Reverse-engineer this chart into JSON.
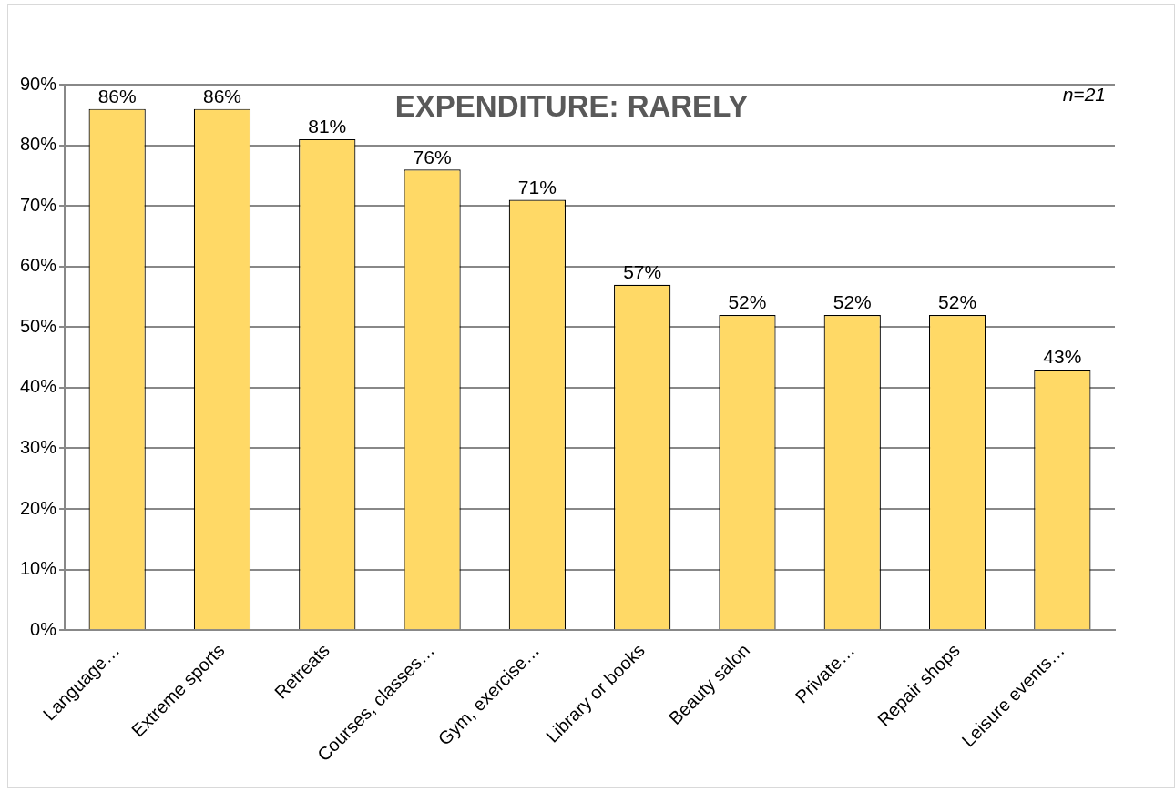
{
  "chart_data": {
    "type": "bar",
    "title": "EXPENDITURE: RARELY",
    "categories": [
      "Language…",
      "Extreme sports",
      "Retreats",
      "Courses, classes…",
      "Gym, exercise…",
      "Library or books",
      "Beauty salon",
      "Private…",
      "Repair shops",
      "Leisure events…"
    ],
    "values": [
      86,
      86,
      81,
      76,
      71,
      57,
      52,
      52,
      52,
      43
    ],
    "value_labels": [
      "86%",
      "86%",
      "81%",
      "76%",
      "71%",
      "57%",
      "52%",
      "52%",
      "52%",
      "43%"
    ],
    "color": "#ffd966",
    "ylim": [
      0,
      90
    ],
    "yticks": [
      {
        "value": 0,
        "label": "0%"
      },
      {
        "value": 10,
        "label": "10%"
      },
      {
        "value": 20,
        "label": "20%"
      },
      {
        "value": 30,
        "label": "30%"
      },
      {
        "value": 40,
        "label": "40%"
      },
      {
        "value": 50,
        "label": "50%"
      },
      {
        "value": 60,
        "label": "60%"
      },
      {
        "value": 70,
        "label": "70%"
      },
      {
        "value": 80,
        "label": "80%"
      },
      {
        "value": 90,
        "label": "90%"
      }
    ],
    "grid": "y",
    "legend": false,
    "annotations": [
      "n=21"
    ]
  }
}
